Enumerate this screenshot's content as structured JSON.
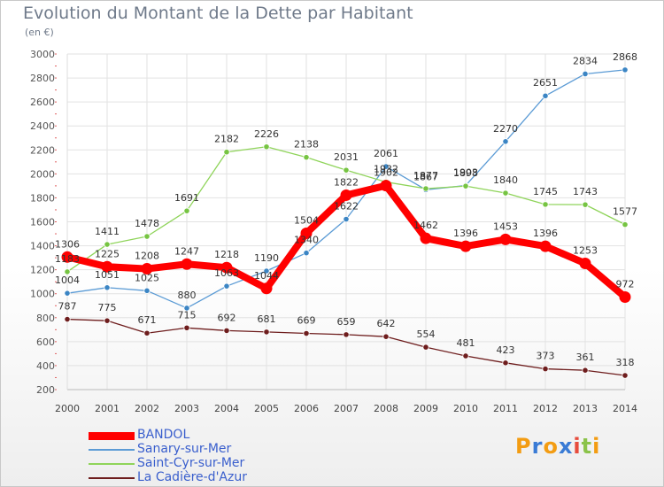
{
  "chart_title": "Evolution du Montant de la Dette par Habitant",
  "unit_label": "(en €)",
  "logo": {
    "text": "ProXiti",
    "letters": [
      "P",
      "r",
      "o",
      "x",
      "i",
      "t",
      "i"
    ],
    "colors": [
      "#f39c12",
      "#3a7bd5",
      "#f39c12",
      "#3a7bd5",
      "#e74c3c",
      "#8bc34a",
      "#f39c12"
    ]
  },
  "chart_data": {
    "type": "line",
    "title": "Evolution du Montant de la Dette par Habitant",
    "subtitle": "(en €)",
    "xlabel": "",
    "ylabel": "",
    "x": [
      "2000",
      "2001",
      "2002",
      "2003",
      "2004",
      "2005",
      "2006",
      "2007",
      "2008",
      "2009",
      "2010",
      "2011",
      "2012",
      "2013",
      "2014"
    ],
    "ylim": [
      200,
      3000
    ],
    "yticks": [
      200,
      400,
      600,
      800,
      1000,
      1200,
      1400,
      1600,
      1800,
      2000,
      2200,
      2400,
      2600,
      2800,
      3000
    ],
    "grid": true,
    "legend_position": "bottom-left",
    "series": [
      {
        "name": "Sanary-sur-Mer",
        "color": "#5b9bd5",
        "point_color": "#3b85c4",
        "values": [
          1004,
          1051,
          1025,
          880,
          1063,
          1190,
          1340,
          1622,
          2061,
          1867,
          1903,
          2270,
          2651,
          2834,
          2868
        ]
      },
      {
        "name": "Saint-Cyr-sur-Mer",
        "color": "#8fd45a",
        "point_color": "#76c442",
        "values": [
          1183,
          1411,
          1478,
          1691,
          2182,
          2226,
          2138,
          2031,
          1932,
          1877,
          1898,
          1840,
          1745,
          1743,
          1577
        ]
      },
      {
        "name": "La Cadière-d'Azur",
        "color": "#6e1d1d",
        "point_color": "#6e1d1d",
        "values": [
          787,
          775,
          671,
          715,
          692,
          681,
          669,
          659,
          642,
          554,
          481,
          423,
          373,
          361,
          318
        ]
      },
      {
        "name": "BANDOL",
        "color": "#ff0000",
        "point_color": "#ff0000",
        "values": [
          1306,
          1225,
          1208,
          1247,
          1218,
          1044,
          1504,
          1822,
          1902,
          1462,
          1396,
          1453,
          1396,
          1253,
          972
        ]
      }
    ]
  }
}
